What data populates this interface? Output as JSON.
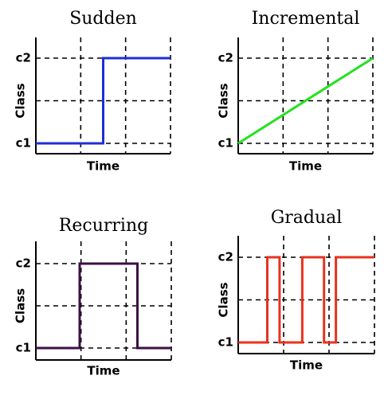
{
  "chart_data": [
    {
      "type": "line",
      "title": "Sudden",
      "xlabel": "Time",
      "ylabel": "Class",
      "y_categories": [
        "c1",
        "c2"
      ],
      "xlim": [
        0,
        3
      ],
      "grid": true,
      "series": [
        {
          "color": "#1f2fd6",
          "x": [
            0,
            1.5,
            1.5,
            3
          ],
          "y": [
            "c1",
            "c1",
            "c2",
            "c2"
          ]
        }
      ]
    },
    {
      "type": "line",
      "title": "Incremental",
      "xlabel": "Time",
      "ylabel": "Class",
      "y_categories": [
        "c1",
        "c2"
      ],
      "xlim": [
        0,
        3
      ],
      "grid": true,
      "series": [
        {
          "color": "#22e21e",
          "x": [
            0,
            3
          ],
          "y": [
            "c1",
            "c2"
          ]
        }
      ]
    },
    {
      "type": "line",
      "title": "Recurring",
      "xlabel": "Time",
      "ylabel": "Class",
      "y_categories": [
        "c1",
        "c2"
      ],
      "xlim": [
        0,
        3
      ],
      "grid": true,
      "series": [
        {
          "color": "#3d0f45",
          "x": [
            0,
            0.97,
            0.97,
            2.25,
            2.25,
            3
          ],
          "y": [
            "c1",
            "c1",
            "c2",
            "c2",
            "c1",
            "c1"
          ]
        }
      ]
    },
    {
      "type": "line",
      "title": "Gradual",
      "xlabel": "Time",
      "ylabel": "Class",
      "y_categories": [
        "c1",
        "c2"
      ],
      "xlim": [
        0,
        3
      ],
      "grid": true,
      "series": [
        {
          "color": "#e8321e",
          "x": [
            0,
            0.64,
            0.64,
            0.91,
            0.91,
            1.41,
            1.41,
            1.89,
            1.89,
            2.15,
            2.15,
            3
          ],
          "y": [
            "c1",
            "c1",
            "c2",
            "c2",
            "c1",
            "c1",
            "c2",
            "c2",
            "c1",
            "c1",
            "c2",
            "c2"
          ]
        }
      ]
    }
  ]
}
